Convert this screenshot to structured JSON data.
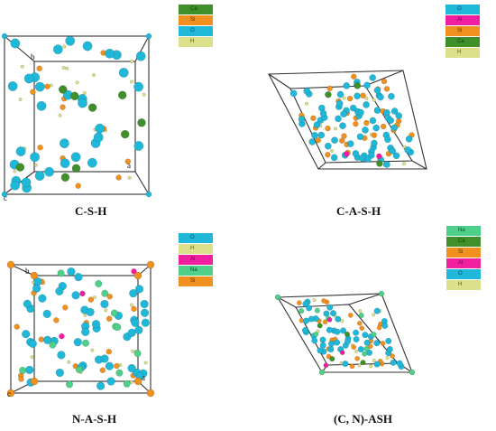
{
  "colors": {
    "Ca": "#3f8f2a",
    "Si": "#f0901e",
    "O": "#20b8d8",
    "H": "#dde08a",
    "Al": "#ef1fa0",
    "Na": "#4fd08a"
  },
  "panels": [
    {
      "id": "csh",
      "caption": "C-S-H",
      "legend": [
        "Ca",
        "Si",
        "O",
        "H"
      ],
      "axis_labels": {
        "a": "a",
        "b": "b",
        "c": "c"
      }
    },
    {
      "id": "cash",
      "caption": "C-A-S-H",
      "legend": [
        "O",
        "Al",
        "Si",
        "Ca",
        "H"
      ],
      "axis_labels": {}
    },
    {
      "id": "nash",
      "caption": "N-A-S-H",
      "legend": [
        "O",
        "H",
        "Al",
        "Na",
        "Si"
      ],
      "axis_labels": {
        "a": "a",
        "b": "b",
        "c": "c"
      }
    },
    {
      "id": "cnash",
      "caption": "(C, N)-ASH",
      "legend": [
        "Na",
        "Ca",
        "Si",
        "Al",
        "O",
        "H"
      ],
      "axis_labels": {}
    }
  ]
}
